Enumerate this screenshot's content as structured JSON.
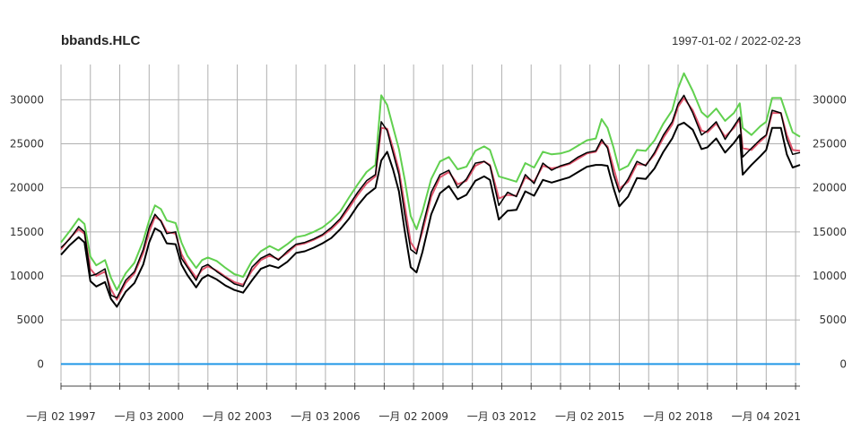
{
  "chart_data": {
    "type": "line",
    "title": "bbands.HLC",
    "date_range": "1997-01-02 / 2022-02-23",
    "ylim": [
      -2000,
      34000
    ],
    "y_ticks": [
      0,
      5000,
      10000,
      15000,
      20000,
      25000,
      30000
    ],
    "x_tick_labels": [
      "一月 02 1997",
      "一月 03 2000",
      "一月 02 2003",
      "一月 03 2006",
      "一月 02 2009",
      "一月 03 2012",
      "一月 02 2015",
      "一月 02 2018",
      "一月 04 2021"
    ],
    "x_tick_positions": [
      1997.0,
      2000.0,
      2003.0,
      2006.0,
      2009.0,
      2012.0,
      2015.0,
      2018.0,
      2021.0
    ],
    "xlim": [
      1997.0,
      2022.15
    ],
    "grid": true,
    "colors": {
      "price": "#000000",
      "mavg": "#df536b",
      "upper": "#61d04f",
      "lower": "#000000",
      "pctB": "#2297e6"
    },
    "x": [
      1997.0,
      1997.3,
      1997.6,
      1997.8,
      1998.0,
      1998.2,
      1998.5,
      1998.7,
      1998.9,
      1999.2,
      1999.5,
      1999.8,
      2000.0,
      2000.2,
      2000.4,
      2000.6,
      2000.9,
      2001.1,
      2001.3,
      2001.6,
      2001.8,
      2002.0,
      2002.3,
      2002.6,
      2002.9,
      2003.2,
      2003.5,
      2003.8,
      2004.1,
      2004.4,
      2004.7,
      2005.0,
      2005.3,
      2005.6,
      2005.9,
      2006.2,
      2006.5,
      2006.8,
      2007.1,
      2007.4,
      2007.7,
      2007.9,
      2008.1,
      2008.3,
      2008.5,
      2008.7,
      2008.9,
      2009.1,
      2009.3,
      2009.6,
      2009.9,
      2010.2,
      2010.5,
      2010.8,
      2011.1,
      2011.4,
      2011.6,
      2011.9,
      2012.2,
      2012.5,
      2012.8,
      2013.1,
      2013.4,
      2013.7,
      2014.0,
      2014.3,
      2014.6,
      2014.9,
      2015.2,
      2015.4,
      2015.6,
      2015.8,
      2016.0,
      2016.3,
      2016.6,
      2016.9,
      2017.2,
      2017.5,
      2017.8,
      2018.0,
      2018.2,
      2018.5,
      2018.8,
      2019.0,
      2019.3,
      2019.6,
      2019.9,
      2020.1,
      2020.2,
      2020.5,
      2020.8,
      2021.0,
      2021.2,
      2021.5,
      2021.7,
      2021.9,
      2022.15
    ],
    "series": [
      {
        "values": [
          13200,
          14200,
          15600,
          15000,
          10000,
          10200,
          10800,
          7800,
          7500,
          9500,
          10500,
          13000,
          15500,
          17000,
          16200,
          14800,
          15000,
          12000,
          11000,
          9500,
          11000,
          11300,
          10500,
          9800,
          9100,
          8800,
          11000,
          12000,
          12500,
          11800,
          12800,
          13600,
          13800,
          14200,
          14700,
          15500,
          16500,
          18000,
          19500,
          20800,
          21500,
          27500,
          26500,
          24000,
          21500,
          17000,
          13000,
          12500,
          15500,
          19500,
          21500,
          22000,
          20000,
          21000,
          22800,
          23000,
          22500,
          18000,
          19500,
          19000,
          21500,
          20500,
          22800,
          22000,
          22500,
          22800,
          23500,
          24000,
          24200,
          25500,
          24500,
          21500,
          19500,
          21000,
          23000,
          22500,
          24000,
          26000,
          27500,
          29500,
          30500,
          28500,
          26000,
          26500,
          27500,
          25500,
          27000,
          28000,
          23500,
          24500,
          25500,
          26000,
          28800,
          28500,
          25500,
          23800,
          24000
        ]
      },
      {
        "values": [
          13000,
          14300,
          15300,
          14800,
          10800,
          10000,
          10500,
          8500,
          7300,
          9200,
          10300,
          12600,
          15000,
          16700,
          16300,
          15000,
          14800,
          12500,
          11200,
          9800,
          10700,
          11100,
          10600,
          9900,
          9300,
          9000,
          10600,
          11800,
          12300,
          11900,
          12600,
          13500,
          13700,
          14100,
          14600,
          15300,
          16300,
          17700,
          19200,
          20500,
          21300,
          26800,
          26700,
          24500,
          22000,
          18000,
          13800,
          12800,
          15000,
          19000,
          21200,
          21800,
          20400,
          20800,
          22500,
          23000,
          22600,
          18800,
          19200,
          19100,
          21200,
          20700,
          22500,
          22200,
          22400,
          22700,
          23300,
          23900,
          24100,
          25200,
          24700,
          22300,
          19900,
          20700,
          22700,
          22600,
          23800,
          25700,
          27200,
          29200,
          30200,
          28800,
          26500,
          26300,
          27300,
          25800,
          26800,
          27800,
          24500,
          24300,
          25300,
          25900,
          28500,
          28500,
          26000,
          24300,
          24200
        ]
      },
      {
        "values": [
          13800,
          15100,
          16500,
          15900,
          12200,
          11200,
          11800,
          9800,
          8400,
          10300,
          11500,
          14000,
          16300,
          18000,
          17600,
          16300,
          16000,
          13800,
          12300,
          10900,
          11800,
          12100,
          11700,
          10900,
          10200,
          9900,
          11700,
          12800,
          13400,
          12900,
          13600,
          14400,
          14600,
          15000,
          15500,
          16300,
          17300,
          18900,
          20400,
          21800,
          22600,
          30500,
          29400,
          26900,
          24400,
          20900,
          16800,
          15300,
          17300,
          21000,
          23000,
          23500,
          22100,
          22400,
          24200,
          24700,
          24300,
          21300,
          21000,
          20700,
          22800,
          22300,
          24100,
          23800,
          23900,
          24200,
          24800,
          25400,
          25600,
          27800,
          26800,
          24600,
          22000,
          22500,
          24300,
          24200,
          25400,
          27300,
          28800,
          31300,
          33000,
          31000,
          28600,
          28000,
          29000,
          27600,
          28500,
          29600,
          26800,
          26000,
          27000,
          27500,
          30200,
          30200,
          28200,
          26300,
          25800
        ]
      },
      {
        "values": [
          12400,
          13500,
          14400,
          13800,
          9400,
          8800,
          9300,
          7400,
          6500,
          8200,
          9200,
          11300,
          13800,
          15400,
          15000,
          13700,
          13600,
          11300,
          10100,
          8700,
          9700,
          10100,
          9600,
          8900,
          8400,
          8100,
          9500,
          10800,
          11200,
          10900,
          11600,
          12600,
          12800,
          13200,
          13700,
          14300,
          15300,
          16500,
          18000,
          19200,
          20000,
          23100,
          24100,
          22100,
          19600,
          15100,
          11000,
          10400,
          12700,
          17000,
          19400,
          20200,
          18700,
          19200,
          20800,
          21300,
          20900,
          16400,
          17400,
          17500,
          19600,
          19100,
          20900,
          20600,
          20900,
          21200,
          21800,
          22400,
          22600,
          22600,
          22500,
          20000,
          17900,
          19000,
          21100,
          21000,
          22200,
          24100,
          25600,
          27100,
          27400,
          26600,
          24400,
          24600,
          25600,
          24000,
          25100,
          26000,
          21500,
          22600,
          23600,
          24300,
          26800,
          26800,
          23800,
          22300,
          22600
        ]
      }
    ]
  }
}
